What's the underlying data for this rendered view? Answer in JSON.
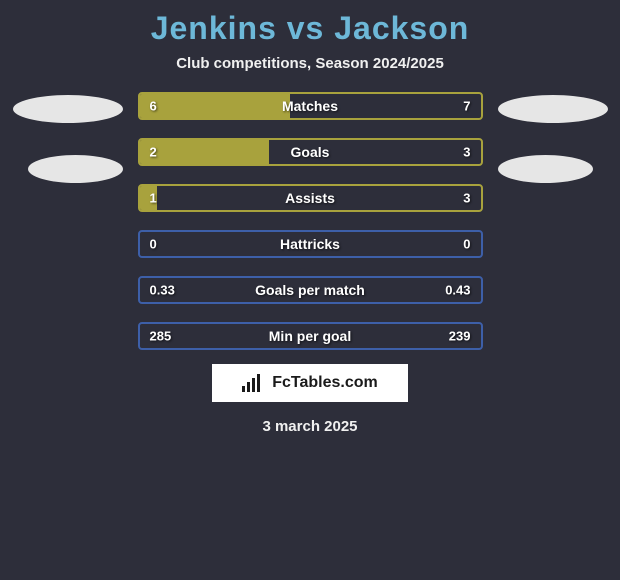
{
  "title": "Jenkins vs Jackson",
  "subtitle": "Club competitions, Season 2024/2025",
  "date": "3 march 2025",
  "footer_brand": "FcTables.com",
  "background_color": "#2d2e3a",
  "title_color": "#6db8d8",
  "text_color": "#ffffff",
  "subtitle_color": "#f0f0f0",
  "player1_color": "#a8a23d",
  "player2_color": "#3d5fa8",
  "oval_color": "#e6e6e6",
  "stats": [
    {
      "label": "Matches",
      "left_value": "6",
      "right_value": "7",
      "left_fill_pct": 44,
      "border_color": "#a8a23d",
      "fill_color": "#a8a23d"
    },
    {
      "label": "Goals",
      "left_value": "2",
      "right_value": "3",
      "left_fill_pct": 38,
      "border_color": "#a8a23d",
      "fill_color": "#a8a23d"
    },
    {
      "label": "Assists",
      "left_value": "1",
      "right_value": "3",
      "left_fill_pct": 5,
      "border_color": "#a8a23d",
      "fill_color": "#a8a23d"
    },
    {
      "label": "Hattricks",
      "left_value": "0",
      "right_value": "0",
      "left_fill_pct": 0,
      "border_color": "#3d5fa8",
      "fill_color": "#3d5fa8"
    },
    {
      "label": "Goals per match",
      "left_value": "0.33",
      "right_value": "0.43",
      "left_fill_pct": 0,
      "border_color": "#3d5fa8",
      "fill_color": "#3d5fa8"
    },
    {
      "label": "Min per goal",
      "left_value": "285",
      "right_value": "239",
      "left_fill_pct": 0,
      "border_color": "#3d5fa8",
      "fill_color": "#3d5fa8"
    }
  ]
}
